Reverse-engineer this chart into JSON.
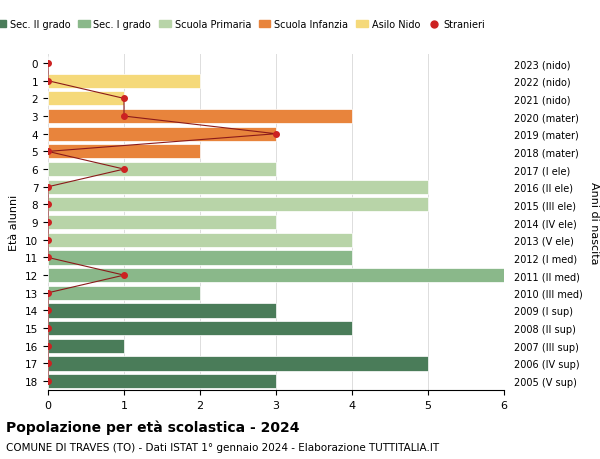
{
  "ages": [
    18,
    17,
    16,
    15,
    14,
    13,
    12,
    11,
    10,
    9,
    8,
    7,
    6,
    5,
    4,
    3,
    2,
    1,
    0
  ],
  "right_labels": [
    "2005 (V sup)",
    "2006 (IV sup)",
    "2007 (III sup)",
    "2008 (II sup)",
    "2009 (I sup)",
    "2010 (III med)",
    "2011 (II med)",
    "2012 (I med)",
    "2013 (V ele)",
    "2014 (IV ele)",
    "2015 (III ele)",
    "2016 (II ele)",
    "2017 (I ele)",
    "2018 (mater)",
    "2019 (mater)",
    "2020 (mater)",
    "2021 (nido)",
    "2022 (nido)",
    "2023 (nido)"
  ],
  "bar_values": [
    3,
    5,
    1,
    4,
    3,
    2,
    6,
    4,
    4,
    3,
    5,
    5,
    3,
    2,
    3,
    4,
    1,
    2,
    0
  ],
  "bar_colors": [
    "#4a7c59",
    "#4a7c59",
    "#4a7c59",
    "#4a7c59",
    "#4a7c59",
    "#8ab88a",
    "#8ab88a",
    "#8ab88a",
    "#b8d4a8",
    "#b8d4a8",
    "#b8d4a8",
    "#b8d4a8",
    "#b8d4a8",
    "#e8843c",
    "#e8843c",
    "#e8843c",
    "#f5d97a",
    "#f5d97a",
    "#f5d97a"
  ],
  "stranieri_values": [
    0,
    0,
    0,
    0,
    0,
    0,
    1,
    0,
    0,
    0,
    0,
    0,
    1,
    0,
    3,
    1,
    1,
    0,
    0
  ],
  "legend_labels": [
    "Sec. II grado",
    "Sec. I grado",
    "Scuola Primaria",
    "Scuola Infanzia",
    "Asilo Nido",
    "Stranieri"
  ],
  "legend_colors": [
    "#4a7c59",
    "#8ab88a",
    "#b8d4a8",
    "#e8843c",
    "#f5d97a",
    "#cc2222"
  ],
  "ylabel": "Età alunni",
  "right_ylabel": "Anni di nascita",
  "title": "Popolazione per età scolastica - 2024",
  "subtitle": "COMUNE DI TRAVES (TO) - Dati ISTAT 1° gennaio 2024 - Elaborazione TUTTITALIA.IT",
  "xlim": [
    0,
    6
  ],
  "xticks": [
    0,
    1,
    2,
    3,
    4,
    5,
    6
  ],
  "background_color": "#ffffff",
  "grid_color": "#dddddd"
}
